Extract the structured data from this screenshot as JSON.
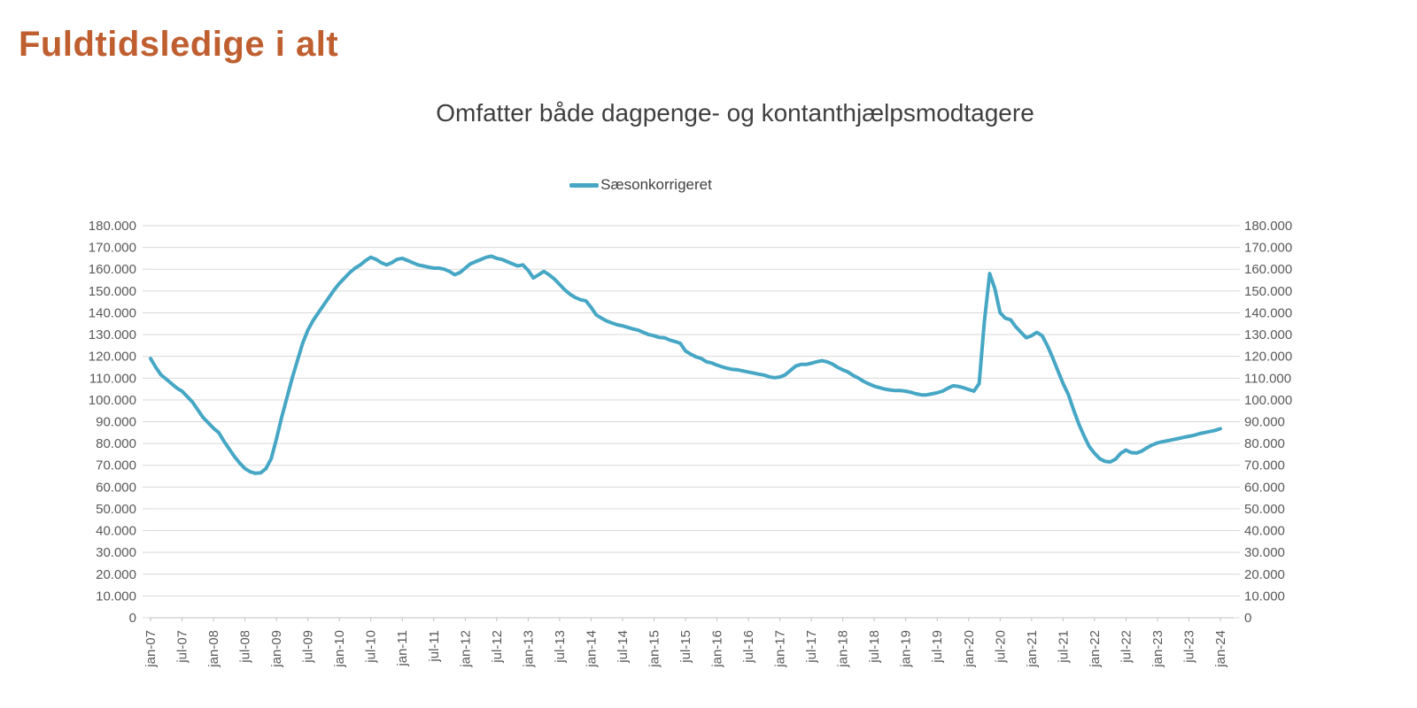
{
  "page": {
    "title": "Fuldtidsledige i alt",
    "title_color": "#bf5f30",
    "background": "#ffffff"
  },
  "chart": {
    "subtitle": "Omfatter både dagpenge- og kontanthjælpsmodtagere",
    "legend": {
      "label": "Sæsonkorrigeret",
      "swatch_color": "#46a7c5"
    },
    "colors": {
      "line": "#46a7c5",
      "gridline": "#d9d9d9",
      "axis_line": "#bfbfbf",
      "tick_label": "#595959",
      "subtitle_text": "#3f3f3f"
    }
  },
  "chart_data": {
    "type": "line",
    "title": "Omfatter både dagpenge- og kontanthjælpsmodtagere",
    "legend_position": "top-center",
    "grid": true,
    "y_axis_sides": [
      "left",
      "right"
    ],
    "ylim": [
      0,
      180000
    ],
    "y_tick_step": 10000,
    "y_tick_labels": [
      "0",
      "10.000",
      "20.000",
      "30.000",
      "40.000",
      "50.000",
      "60.000",
      "70.000",
      "80.000",
      "90.000",
      "100.000",
      "110.000",
      "120.000",
      "130.000",
      "140.000",
      "150.000",
      "160.000",
      "170.000",
      "180.000"
    ],
    "x_tick_labels": [
      "jan-07",
      "jul-07",
      "jan-08",
      "jul-08",
      "jan-09",
      "jul-09",
      "jan-10",
      "jul-10",
      "jan-11",
      "jul-11",
      "jan-12",
      "jul-12",
      "jan-13",
      "jul-13",
      "jan-14",
      "jul-14",
      "jan-15",
      "jul-15",
      "jan-16",
      "jul-16",
      "jan-17",
      "jul-17",
      "jan-18",
      "jul-18",
      "jan-19",
      "jul-19",
      "jan-20",
      "jul-20",
      "jan-21",
      "jul-21",
      "jan-22",
      "jul-22",
      "jan-23",
      "jul-23",
      "jan-24"
    ],
    "x_ticks_every_n_points": 6,
    "series": [
      {
        "name": "Sæsonkorrigeret",
        "start": "jan-07",
        "end": "jan-24",
        "frequency": "monthly",
        "values": [
          119000,
          115000,
          111500,
          109500,
          107500,
          105500,
          104000,
          101500,
          99000,
          95500,
          92000,
          89500,
          87000,
          85000,
          81000,
          77500,
          74000,
          71000,
          68500,
          67000,
          66300,
          66500,
          68500,
          73000,
          82000,
          92000,
          101000,
          110000,
          118000,
          126000,
          132000,
          136500,
          140000,
          143500,
          147000,
          150500,
          153500,
          156000,
          158500,
          160500,
          162000,
          164000,
          165500,
          164500,
          163000,
          162000,
          163000,
          164500,
          165000,
          164000,
          163000,
          162000,
          161500,
          161000,
          160500,
          160500,
          160000,
          159000,
          157500,
          158500,
          160500,
          162500,
          163500,
          164500,
          165500,
          166000,
          165000,
          164500,
          163500,
          162500,
          161500,
          162000,
          159500,
          156000,
          157500,
          159000,
          157500,
          155500,
          153000,
          150500,
          148500,
          147000,
          146000,
          145500,
          142500,
          139000,
          137500,
          136200,
          135300,
          134500,
          134000,
          133300,
          132600,
          132000,
          131000,
          130000,
          129500,
          128700,
          128500,
          127500,
          126800,
          126000,
          122500,
          121000,
          119800,
          119000,
          117500,
          117000,
          116000,
          115200,
          114500,
          114000,
          113800,
          113300,
          112800,
          112300,
          111800,
          111400,
          110600,
          110200,
          110500,
          111500,
          113500,
          115500,
          116300,
          116300,
          116800,
          117500,
          118000,
          117500,
          116500,
          115000,
          113800,
          112800,
          111200,
          110000,
          108500,
          107300,
          106300,
          105600,
          105000,
          104600,
          104300,
          104300,
          104000,
          103500,
          102800,
          102300,
          102300,
          102800,
          103300,
          104000,
          105300,
          106500,
          106200,
          105600,
          104800,
          104000,
          107500,
          136000,
          158000,
          151000,
          140000,
          137500,
          136800,
          133500,
          131000,
          128500,
          129500,
          131000,
          129500,
          125000,
          119500,
          113500,
          107500,
          102500,
          95500,
          89000,
          83500,
          78500,
          75500,
          73000,
          71800,
          71500,
          72800,
          75500,
          77000,
          75800,
          75600,
          76500,
          78000,
          79300,
          80300,
          80800,
          81300,
          81800,
          82300,
          82800,
          83300,
          83800,
          84500,
          85000,
          85500,
          86000,
          86800
        ]
      }
    ]
  }
}
